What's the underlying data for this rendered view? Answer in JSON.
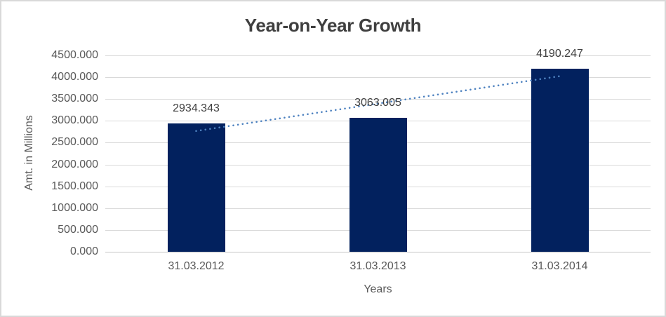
{
  "chart_data": {
    "type": "bar",
    "title": "Year-on-Year Growth",
    "xlabel": "Years",
    "ylabel": "Amt. in Millions",
    "categories": [
      "31.03.2012",
      "31.03.2013",
      "31.03.2014"
    ],
    "values": [
      2934.343,
      3063.005,
      4190.247
    ],
    "data_labels": [
      "2934.343",
      "3063.005",
      "4190.247"
    ],
    "series_name": "Amt. in Millions",
    "ylim": [
      0,
      4500
    ],
    "ytick_step": 500,
    "ytick_labels": [
      "0.000",
      "500.000",
      "1000.000",
      "1500.000",
      "2000.000",
      "2500.000",
      "3000.000",
      "3500.000",
      "4000.000",
      "4500.000"
    ],
    "grid": true,
    "legend": "none",
    "trendline": {
      "type": "linear",
      "style": "dotted",
      "endpoint_values": [
        2767.913,
        4023.817
      ]
    },
    "colors": {
      "bar": "#02215E",
      "trendline": "#4E82C0",
      "gridline": "#D9D9D9",
      "axis_line": "#C6C6C6",
      "title_text": "#3F3F3F",
      "label_text": "#595959",
      "value_text": "#404040",
      "border": "#D9D9D9",
      "background": "#FFFFFF"
    }
  }
}
